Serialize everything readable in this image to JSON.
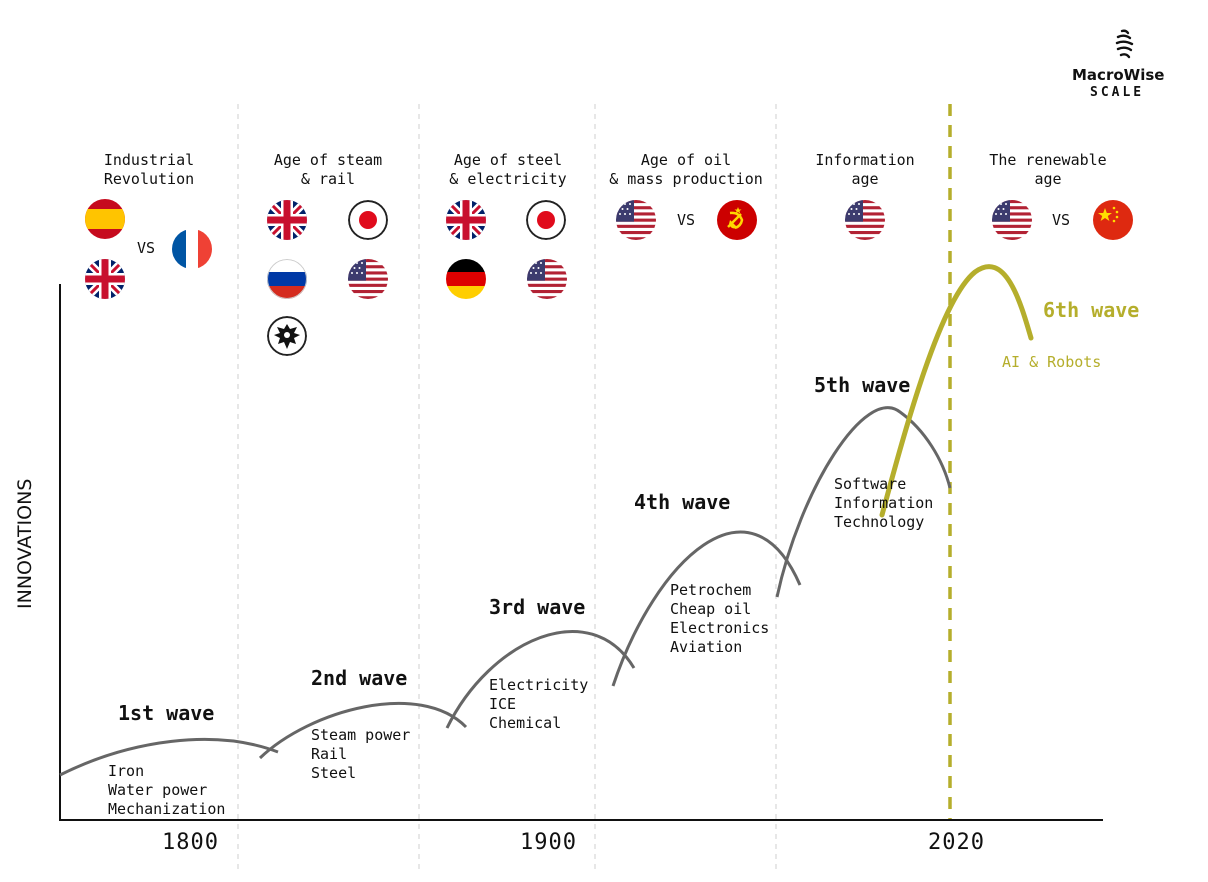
{
  "brand": {
    "name": "MacroWise",
    "sub": "SCALE",
    "icon": "spiral-logo-icon"
  },
  "chart_data": {
    "type": "line",
    "title": "",
    "ylabel": "INNOVATIONS",
    "x_ticks": [
      "1800",
      "1900",
      "2020"
    ],
    "eras": [
      {
        "label": "Industrial\nRevolution",
        "flags": [
          "spain",
          "uk",
          "france"
        ],
        "vs": "VS"
      },
      {
        "label": "Age of steam\n& rail",
        "flags": [
          "uk",
          "japan",
          "russia",
          "usa",
          "prussia"
        ]
      },
      {
        "label": "Age of steel\n& electricity",
        "flags": [
          "uk",
          "japan",
          "germany",
          "usa"
        ]
      },
      {
        "label": "Age of oil\n& mass production",
        "flags": [
          "usa",
          "ussr"
        ],
        "vs": "VS"
      },
      {
        "label": "Information\nage",
        "flags": [
          "usa"
        ]
      },
      {
        "label": "The renewable\nage",
        "flags": [
          "usa",
          "china"
        ],
        "vs": "VS"
      }
    ],
    "series": [
      {
        "name": "1st wave",
        "items": [
          "Iron",
          "Water power",
          "Mechanization"
        ],
        "color": "#666666"
      },
      {
        "name": "2nd wave",
        "items": [
          "Steam power",
          "Rail",
          "Steel"
        ],
        "color": "#666666"
      },
      {
        "name": "3rd wave",
        "items": [
          "Electricity",
          "ICE",
          "Chemical"
        ],
        "color": "#666666"
      },
      {
        "name": "4th wave",
        "items": [
          "Petrochem",
          "Cheap oil",
          "Electronics",
          "Aviation"
        ],
        "color": "#666666"
      },
      {
        "name": "5th wave",
        "items": [
          "Software",
          "Information",
          "Technology"
        ],
        "color": "#666666"
      },
      {
        "name": "6th wave",
        "items": [
          "AI & Robots"
        ],
        "color": "#b5ae2c"
      }
    ],
    "colors": {
      "wave": "#666666",
      "future": "#b5ae2c",
      "axis": "#111111",
      "divider": "#cfcfcf"
    }
  }
}
